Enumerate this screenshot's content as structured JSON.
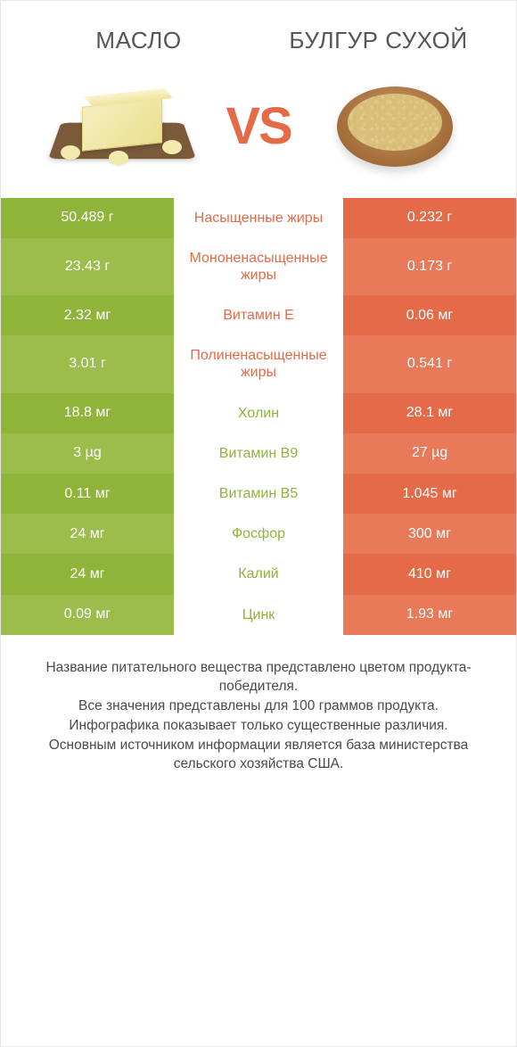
{
  "colors": {
    "left_primary": "#8fb43a",
    "left_alt": "#9cbd4c",
    "right_primary": "#e56b48",
    "right_alt": "#e87a5a",
    "mid_text_left": "#e56b48",
    "mid_text_right": "#8fb43a"
  },
  "header": {
    "left_title": "Масло",
    "right_title": "Булгур сухой",
    "vs": "VS"
  },
  "rows": [
    {
      "left": "50.489 г",
      "label": "Насыщенные жиры",
      "right": "0.232 г",
      "winner": "left"
    },
    {
      "left": "23.43 г",
      "label": "Мононенасыщенные жиры",
      "right": "0.173 г",
      "winner": "left"
    },
    {
      "left": "2.32 мг",
      "label": "Витамин E",
      "right": "0.06 мг",
      "winner": "left"
    },
    {
      "left": "3.01 г",
      "label": "Полиненасыщенные жиры",
      "right": "0.541 г",
      "winner": "left"
    },
    {
      "left": "18.8 мг",
      "label": "Холин",
      "right": "28.1 мг",
      "winner": "right"
    },
    {
      "left": "3 µg",
      "label": "Витамин B9",
      "right": "27 µg",
      "winner": "right"
    },
    {
      "left": "0.11 мг",
      "label": "Витамин B5",
      "right": "1.045 мг",
      "winner": "right"
    },
    {
      "left": "24 мг",
      "label": "Фосфор",
      "right": "300 мг",
      "winner": "right"
    },
    {
      "left": "24 мг",
      "label": "Калий",
      "right": "410 мг",
      "winner": "right"
    },
    {
      "left": "0.09 мг",
      "label": "Цинк",
      "right": "1.93 мг",
      "winner": "right"
    }
  ],
  "footer": {
    "line1": "Название питательного вещества представлено цветом продукта-победителя.",
    "line2": "Все значения представлены для 100 граммов продукта.",
    "line3": "Инфографика показывает только существенные различия.",
    "line4": "Основным источником информации является база министерства сельского хозяйства США."
  }
}
